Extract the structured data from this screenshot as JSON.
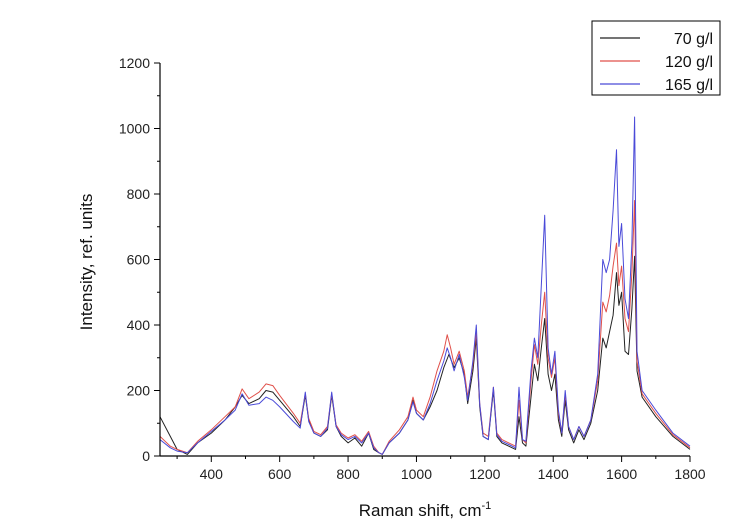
{
  "chart_data": {
    "type": "line",
    "title": "",
    "xlabel": "Raman shift, cm",
    "xlabel_superscript": "-1",
    "ylabel": "Intensity, ref. units",
    "xlim": [
      250,
      1800
    ],
    "ylim": [
      0,
      1200
    ],
    "xticks": [
      400,
      600,
      800,
      1000,
      1200,
      1400,
      1600,
      1800
    ],
    "yticks": [
      0,
      200,
      400,
      600,
      800,
      1000,
      1200
    ],
    "grid": false,
    "legend_position": "top-right",
    "series": [
      {
        "name": "70 g/l",
        "color": "#222222",
        "points": [
          [
            250,
            120
          ],
          [
            280,
            60
          ],
          [
            300,
            20
          ],
          [
            330,
            5
          ],
          [
            360,
            40
          ],
          [
            400,
            70
          ],
          [
            440,
            110
          ],
          [
            470,
            150
          ],
          [
            490,
            185
          ],
          [
            510,
            160
          ],
          [
            540,
            175
          ],
          [
            560,
            200
          ],
          [
            580,
            195
          ],
          [
            600,
            170
          ],
          [
            640,
            120
          ],
          [
            660,
            90
          ],
          [
            675,
            185
          ],
          [
            685,
            110
          ],
          [
            700,
            70
          ],
          [
            720,
            60
          ],
          [
            740,
            80
          ],
          [
            752,
            185
          ],
          [
            765,
            90
          ],
          [
            780,
            60
          ],
          [
            800,
            40
          ],
          [
            820,
            55
          ],
          [
            840,
            30
          ],
          [
            860,
            70
          ],
          [
            875,
            20
          ],
          [
            890,
            10
          ],
          [
            900,
            5
          ],
          [
            920,
            40
          ],
          [
            950,
            70
          ],
          [
            975,
            110
          ],
          [
            990,
            170
          ],
          [
            1000,
            130
          ],
          [
            1020,
            110
          ],
          [
            1040,
            150
          ],
          [
            1060,
            200
          ],
          [
            1080,
            270
          ],
          [
            1095,
            310
          ],
          [
            1110,
            270
          ],
          [
            1125,
            300
          ],
          [
            1140,
            250
          ],
          [
            1150,
            160
          ],
          [
            1165,
            260
          ],
          [
            1175,
            360
          ],
          [
            1185,
            150
          ],
          [
            1195,
            60
          ],
          [
            1210,
            50
          ],
          [
            1225,
            200
          ],
          [
            1235,
            60
          ],
          [
            1250,
            40
          ],
          [
            1270,
            30
          ],
          [
            1290,
            20
          ],
          [
            1300,
            120
          ],
          [
            1310,
            40
          ],
          [
            1320,
            30
          ],
          [
            1335,
            180
          ],
          [
            1345,
            280
          ],
          [
            1355,
            230
          ],
          [
            1365,
            330
          ],
          [
            1375,
            420
          ],
          [
            1385,
            250
          ],
          [
            1395,
            200
          ],
          [
            1405,
            250
          ],
          [
            1415,
            110
          ],
          [
            1425,
            60
          ],
          [
            1435,
            170
          ],
          [
            1445,
            80
          ],
          [
            1460,
            40
          ],
          [
            1475,
            80
          ],
          [
            1490,
            50
          ],
          [
            1510,
            100
          ],
          [
            1530,
            200
          ],
          [
            1545,
            360
          ],
          [
            1555,
            330
          ],
          [
            1565,
            380
          ],
          [
            1575,
            430
          ],
          [
            1585,
            560
          ],
          [
            1592,
            460
          ],
          [
            1600,
            500
          ],
          [
            1610,
            320
          ],
          [
            1620,
            310
          ],
          [
            1630,
            450
          ],
          [
            1638,
            610
          ],
          [
            1645,
            260
          ],
          [
            1660,
            180
          ],
          [
            1700,
            120
          ],
          [
            1750,
            60
          ],
          [
            1800,
            20
          ]
        ]
      },
      {
        "name": "120 g/l",
        "color": "#e0504a",
        "points": [
          [
            250,
            60
          ],
          [
            280,
            30
          ],
          [
            300,
            20
          ],
          [
            330,
            10
          ],
          [
            360,
            45
          ],
          [
            400,
            80
          ],
          [
            440,
            120
          ],
          [
            470,
            150
          ],
          [
            490,
            205
          ],
          [
            510,
            175
          ],
          [
            540,
            195
          ],
          [
            560,
            220
          ],
          [
            580,
            215
          ],
          [
            600,
            185
          ],
          [
            640,
            130
          ],
          [
            660,
            100
          ],
          [
            675,
            190
          ],
          [
            685,
            115
          ],
          [
            700,
            75
          ],
          [
            720,
            65
          ],
          [
            740,
            90
          ],
          [
            752,
            190
          ],
          [
            765,
            95
          ],
          [
            780,
            70
          ],
          [
            800,
            55
          ],
          [
            820,
            65
          ],
          [
            840,
            45
          ],
          [
            860,
            75
          ],
          [
            875,
            30
          ],
          [
            890,
            10
          ],
          [
            900,
            5
          ],
          [
            920,
            45
          ],
          [
            950,
            80
          ],
          [
            975,
            120
          ],
          [
            990,
            180
          ],
          [
            1000,
            140
          ],
          [
            1020,
            120
          ],
          [
            1040,
            180
          ],
          [
            1060,
            260
          ],
          [
            1080,
            320
          ],
          [
            1090,
            370
          ],
          [
            1100,
            330
          ],
          [
            1110,
            280
          ],
          [
            1125,
            320
          ],
          [
            1140,
            260
          ],
          [
            1150,
            180
          ],
          [
            1165,
            280
          ],
          [
            1175,
            380
          ],
          [
            1185,
            160
          ],
          [
            1195,
            70
          ],
          [
            1210,
            60
          ],
          [
            1225,
            210
          ],
          [
            1235,
            70
          ],
          [
            1250,
            50
          ],
          [
            1270,
            40
          ],
          [
            1290,
            30
          ],
          [
            1300,
            170
          ],
          [
            1310,
            50
          ],
          [
            1320,
            40
          ],
          [
            1335,
            230
          ],
          [
            1345,
            340
          ],
          [
            1355,
            280
          ],
          [
            1365,
            400
          ],
          [
            1375,
            500
          ],
          [
            1385,
            300
          ],
          [
            1395,
            240
          ],
          [
            1405,
            300
          ],
          [
            1415,
            130
          ],
          [
            1425,
            70
          ],
          [
            1435,
            190
          ],
          [
            1445,
            90
          ],
          [
            1460,
            50
          ],
          [
            1475,
            90
          ],
          [
            1490,
            60
          ],
          [
            1510,
            110
          ],
          [
            1530,
            230
          ],
          [
            1545,
            470
          ],
          [
            1555,
            440
          ],
          [
            1565,
            490
          ],
          [
            1575,
            580
          ],
          [
            1585,
            650
          ],
          [
            1592,
            520
          ],
          [
            1600,
            580
          ],
          [
            1610,
            420
          ],
          [
            1620,
            380
          ],
          [
            1630,
            560
          ],
          [
            1638,
            780
          ],
          [
            1645,
            290
          ],
          [
            1660,
            190
          ],
          [
            1700,
            130
          ],
          [
            1750,
            65
          ],
          [
            1800,
            25
          ]
        ]
      },
      {
        "name": "165 g/l",
        "color": "#4a4ad8",
        "points": [
          [
            250,
            50
          ],
          [
            280,
            25
          ],
          [
            300,
            15
          ],
          [
            330,
            10
          ],
          [
            360,
            40
          ],
          [
            400,
            75
          ],
          [
            440,
            110
          ],
          [
            470,
            140
          ],
          [
            490,
            190
          ],
          [
            510,
            155
          ],
          [
            540,
            160
          ],
          [
            560,
            180
          ],
          [
            580,
            170
          ],
          [
            600,
            150
          ],
          [
            640,
            105
          ],
          [
            660,
            85
          ],
          [
            675,
            195
          ],
          [
            685,
            105
          ],
          [
            700,
            70
          ],
          [
            720,
            60
          ],
          [
            740,
            85
          ],
          [
            752,
            195
          ],
          [
            765,
            90
          ],
          [
            780,
            65
          ],
          [
            800,
            50
          ],
          [
            820,
            60
          ],
          [
            840,
            40
          ],
          [
            860,
            70
          ],
          [
            875,
            25
          ],
          [
            890,
            10
          ],
          [
            900,
            5
          ],
          [
            920,
            40
          ],
          [
            950,
            70
          ],
          [
            975,
            110
          ],
          [
            990,
            165
          ],
          [
            1000,
            130
          ],
          [
            1020,
            110
          ],
          [
            1040,
            160
          ],
          [
            1060,
            230
          ],
          [
            1080,
            290
          ],
          [
            1090,
            330
          ],
          [
            1100,
            300
          ],
          [
            1110,
            260
          ],
          [
            1125,
            310
          ],
          [
            1140,
            240
          ],
          [
            1150,
            170
          ],
          [
            1165,
            290
          ],
          [
            1175,
            400
          ],
          [
            1185,
            160
          ],
          [
            1195,
            60
          ],
          [
            1210,
            50
          ],
          [
            1225,
            210
          ],
          [
            1235,
            65
          ],
          [
            1250,
            45
          ],
          [
            1270,
            35
          ],
          [
            1290,
            25
          ],
          [
            1300,
            210
          ],
          [
            1310,
            50
          ],
          [
            1320,
            45
          ],
          [
            1335,
            260
          ],
          [
            1345,
            360
          ],
          [
            1355,
            300
          ],
          [
            1365,
            520
          ],
          [
            1375,
            735
          ],
          [
            1385,
            330
          ],
          [
            1395,
            250
          ],
          [
            1405,
            320
          ],
          [
            1415,
            140
          ],
          [
            1425,
            70
          ],
          [
            1435,
            200
          ],
          [
            1445,
            90
          ],
          [
            1460,
            50
          ],
          [
            1475,
            90
          ],
          [
            1490,
            60
          ],
          [
            1510,
            110
          ],
          [
            1530,
            250
          ],
          [
            1545,
            600
          ],
          [
            1555,
            560
          ],
          [
            1565,
            600
          ],
          [
            1575,
            750
          ],
          [
            1585,
            935
          ],
          [
            1592,
            640
          ],
          [
            1600,
            710
          ],
          [
            1610,
            480
          ],
          [
            1620,
            420
          ],
          [
            1630,
            650
          ],
          [
            1638,
            1035
          ],
          [
            1645,
            320
          ],
          [
            1660,
            200
          ],
          [
            1700,
            140
          ],
          [
            1750,
            70
          ],
          [
            1800,
            30
          ]
        ]
      }
    ]
  }
}
